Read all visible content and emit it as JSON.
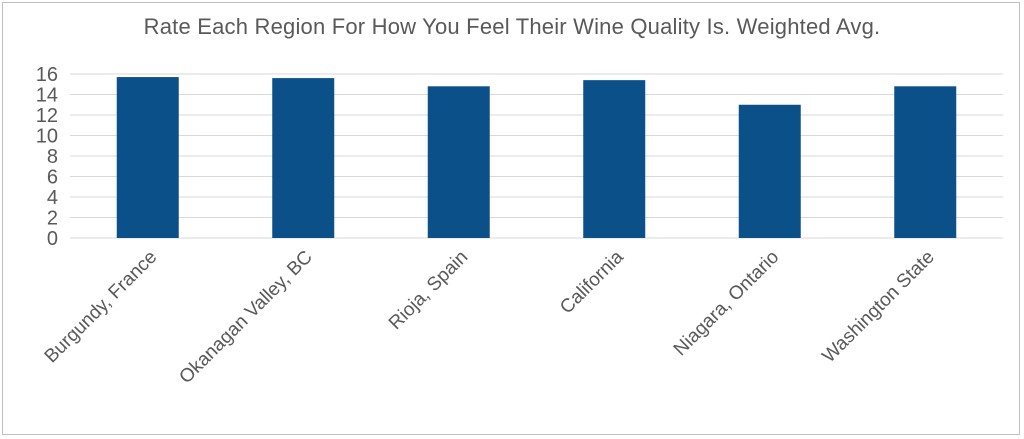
{
  "chart_data": {
    "type": "bar",
    "title": "Rate Each Region For How You Feel Their Wine Quality Is. Weighted Avg.",
    "categories": [
      "Burgundy, France",
      "Okanagan Valley, BC",
      "Rioja, Spain",
      "California",
      "Niagara, Ontario",
      "Washington State"
    ],
    "values": [
      15.7,
      15.6,
      14.8,
      15.4,
      13.0,
      14.8
    ],
    "xlabel": "",
    "ylabel": "",
    "ylim": [
      0,
      16
    ],
    "yticks": [
      "0",
      "2",
      "4",
      "6",
      "8",
      "10",
      "12",
      "14",
      "16"
    ],
    "grid": true,
    "legend": "none",
    "bar_color": "#0b5089"
  }
}
